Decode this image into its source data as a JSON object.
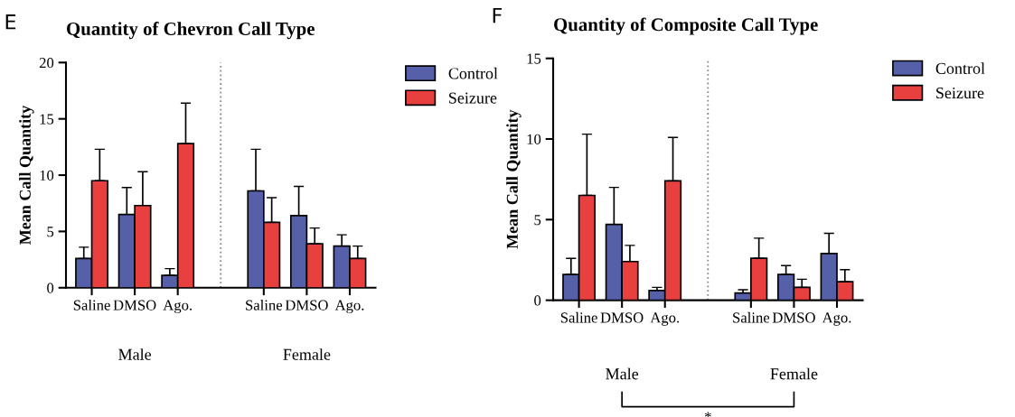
{
  "chart_data": [
    {
      "type": "bar",
      "title": "Quantity of Chevron Call Type",
      "ylabel": "Mean Call Quantity",
      "categories": [
        "Saline",
        "DMSO",
        "Ago.",
        null,
        "Saline",
        "DMSO",
        "Ago."
      ],
      "series": [
        {
          "name": "Control",
          "color": "#5560a8",
          "values": [
            2.6,
            6.5,
            1.1,
            null,
            8.6,
            6.4,
            3.7
          ],
          "errors": [
            [
              2.6,
              3.6
            ],
            [
              6.5,
              8.9
            ],
            [
              1.1,
              1.7
            ],
            null,
            [
              8.6,
              12.3
            ],
            [
              6.4,
              9.0
            ],
            [
              3.7,
              4.7
            ]
          ]
        },
        {
          "name": "Seizure",
          "color": "#e8403f",
          "values": [
            9.5,
            7.3,
            12.8,
            null,
            5.8,
            3.9,
            2.6
          ],
          "errors": [
            [
              9.5,
              12.3
            ],
            [
              7.3,
              10.3
            ],
            [
              12.8,
              16.4
            ],
            null,
            [
              5.8,
              8.0
            ],
            [
              3.9,
              5.3
            ],
            [
              2.6,
              3.7
            ]
          ]
        }
      ],
      "ylim": [
        0,
        20
      ],
      "yticks": [
        0,
        5,
        10,
        15,
        20
      ],
      "legend": "top right",
      "annotations": [
        "E",
        "Male",
        "Female"
      ]
    },
    {
      "type": "bar",
      "title": "Quantity of Composite Call Type",
      "ylabel": "Mean Call Quantity",
      "categories": [
        "Saline",
        "DMSO",
        "Ago.",
        null,
        "Saline",
        "DMSO",
        "Ago."
      ],
      "series": [
        {
          "name": "Control",
          "color": "#5560a8",
          "values": [
            1.6,
            4.7,
            0.6,
            null,
            0.45,
            1.6,
            2.9
          ],
          "errors": [
            [
              1.6,
              2.6
            ],
            [
              4.7,
              7.0
            ],
            [
              0.6,
              0.8
            ],
            null,
            [
              0.45,
              0.65
            ],
            [
              1.6,
              2.15
            ],
            [
              2.9,
              4.15
            ]
          ]
        },
        {
          "name": "Seizure",
          "color": "#e8403f",
          "values": [
            6.5,
            2.4,
            7.4,
            null,
            2.6,
            0.8,
            1.15
          ],
          "errors": [
            [
              6.5,
              10.3
            ],
            [
              2.4,
              3.4
            ],
            [
              7.4,
              10.1
            ],
            null,
            [
              2.6,
              3.85
            ],
            [
              0.8,
              1.3
            ],
            [
              1.15,
              1.9
            ]
          ]
        }
      ],
      "ylim": [
        0,
        15
      ],
      "yticks": [
        0,
        5,
        10,
        15
      ],
      "legend": "top right",
      "annotations": [
        "F",
        "Male",
        "Female",
        "*"
      ]
    }
  ]
}
